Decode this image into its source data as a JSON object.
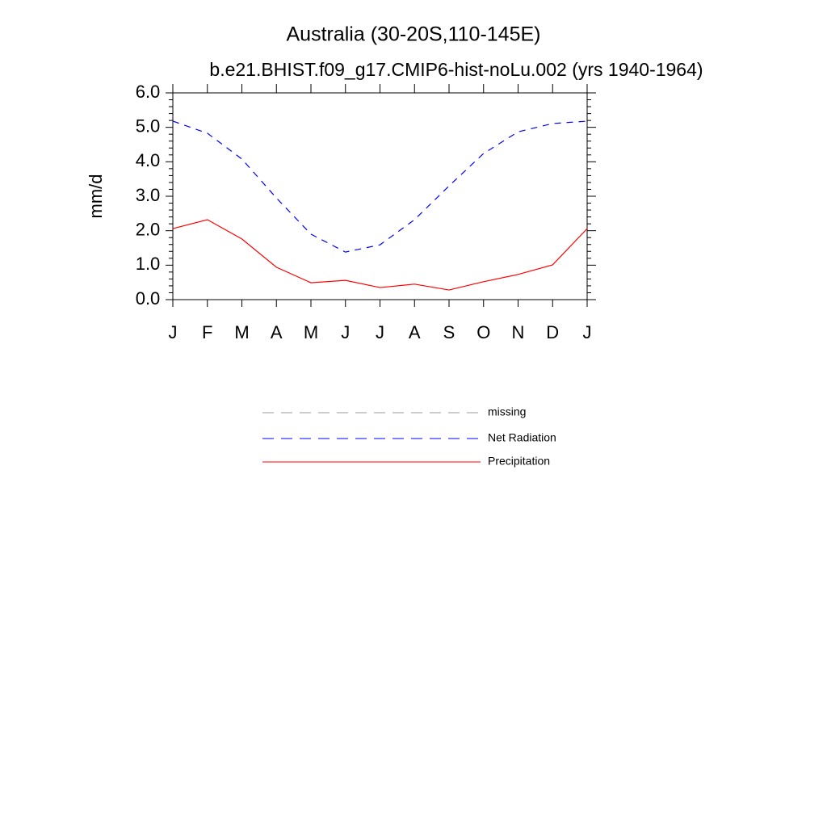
{
  "chart_data": {
    "type": "line",
    "title": "Australia (30-20S,110-145E)",
    "subtitle": "b.e21.BHIST.f09_g17.CMIP6-hist-noLu.002 (yrs 1940-1964)",
    "ylabel": "mm/d",
    "categories": [
      "J",
      "F",
      "M",
      "A",
      "M",
      "J",
      "J",
      "A",
      "S",
      "O",
      "N",
      "D",
      "J"
    ],
    "ylim": [
      0,
      6
    ],
    "yticks": [
      {
        "value": 0,
        "label": "0.0"
      },
      {
        "value": 1,
        "label": "1.0"
      },
      {
        "value": 2,
        "label": "2.0"
      },
      {
        "value": 3,
        "label": "3.0"
      },
      {
        "value": 4,
        "label": "4.0"
      },
      {
        "value": 5,
        "label": "5.0"
      },
      {
        "value": 6,
        "label": "6.0"
      }
    ],
    "yminorticks": [
      0.2,
      0.4,
      0.6,
      0.8,
      1.2,
      1.4,
      1.6,
      1.8,
      2.2,
      2.4,
      2.6,
      2.8,
      3.2,
      3.4,
      3.6,
      3.8,
      4.2,
      4.4,
      4.6,
      4.8,
      5.2,
      5.4,
      5.6,
      5.8
    ],
    "series": [
      {
        "name": "missing",
        "color": "#999999",
        "dash": true,
        "values": [
          null,
          null,
          null,
          null,
          null,
          null,
          null,
          null,
          null,
          null,
          null,
          null,
          null
        ]
      },
      {
        "name": "Net Radiation",
        "color": "#0000ff",
        "dash": true,
        "values": [
          5.18,
          4.83,
          4.08,
          2.95,
          1.9,
          1.38,
          1.59,
          2.32,
          3.3,
          4.24,
          4.87,
          5.11,
          5.18
        ]
      },
      {
        "name": "Precipitation",
        "color": "#ff0000",
        "dash": false,
        "values": [
          2.06,
          2.32,
          1.76,
          0.94,
          0.49,
          0.56,
          0.35,
          0.45,
          0.28,
          0.52,
          0.73,
          1.01,
          2.06
        ]
      }
    ]
  }
}
